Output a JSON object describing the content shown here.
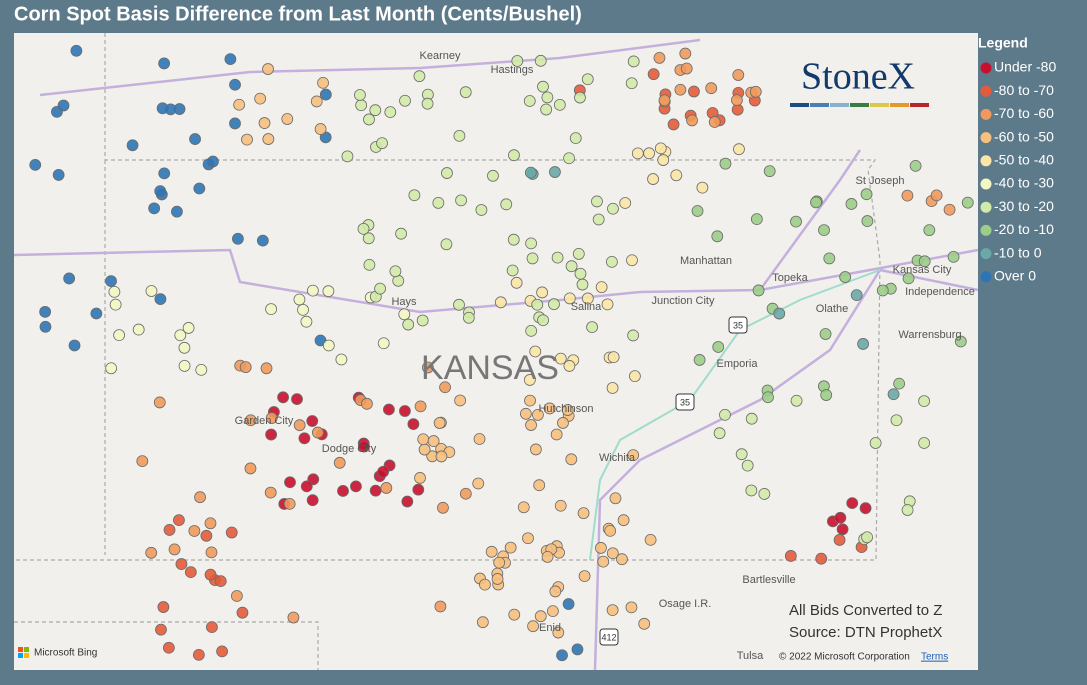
{
  "title": "Corn Spot Basis Difference from Last Month (Cents/Bushel)",
  "legend": {
    "title": "Legend",
    "items": [
      {
        "label": "Under -80",
        "color": "#c8102e"
      },
      {
        "label": "-80 to -70",
        "color": "#e45b3b"
      },
      {
        "label": "-70 to -60",
        "color": "#ef9a5c"
      },
      {
        "label": "-60 to -50",
        "color": "#f7c07e"
      },
      {
        "label": "-50 to -40",
        "color": "#fbe6a6"
      },
      {
        "label": "-40 to -30",
        "color": "#f3f7c4"
      },
      {
        "label": "-30 to -20",
        "color": "#d2eaa8"
      },
      {
        "label": "-20 to -10",
        "color": "#9ccd8a"
      },
      {
        "label": "-10 to 0",
        "color": "#6aa9a8"
      },
      {
        "label": "Over 0",
        "color": "#2e75b6"
      }
    ]
  },
  "map": {
    "state": "KANSAS",
    "places": [
      "Kearney",
      "Hastings",
      "St Joseph",
      "Manhattan",
      "Topeka",
      "Kansas City",
      "Independence",
      "Olathe",
      "Hays",
      "Salina",
      "Junction City",
      "Emporia",
      "Warrensburg",
      "Garden City",
      "Dodge City",
      "Hutchinson",
      "Wichita",
      "Bartlesville",
      "Osage I.R.",
      "Enid",
      "Tulsa"
    ],
    "highways": [
      "35",
      "35",
      "412"
    ]
  },
  "logo": "StoneX",
  "notes": [
    "All Bids Converted to Z",
    "Source: DTN ProphetX"
  ],
  "attribution": {
    "bing": "Microsoft Bing",
    "copyright": "© 2022 Microsoft Corporation",
    "terms": "Terms"
  }
}
